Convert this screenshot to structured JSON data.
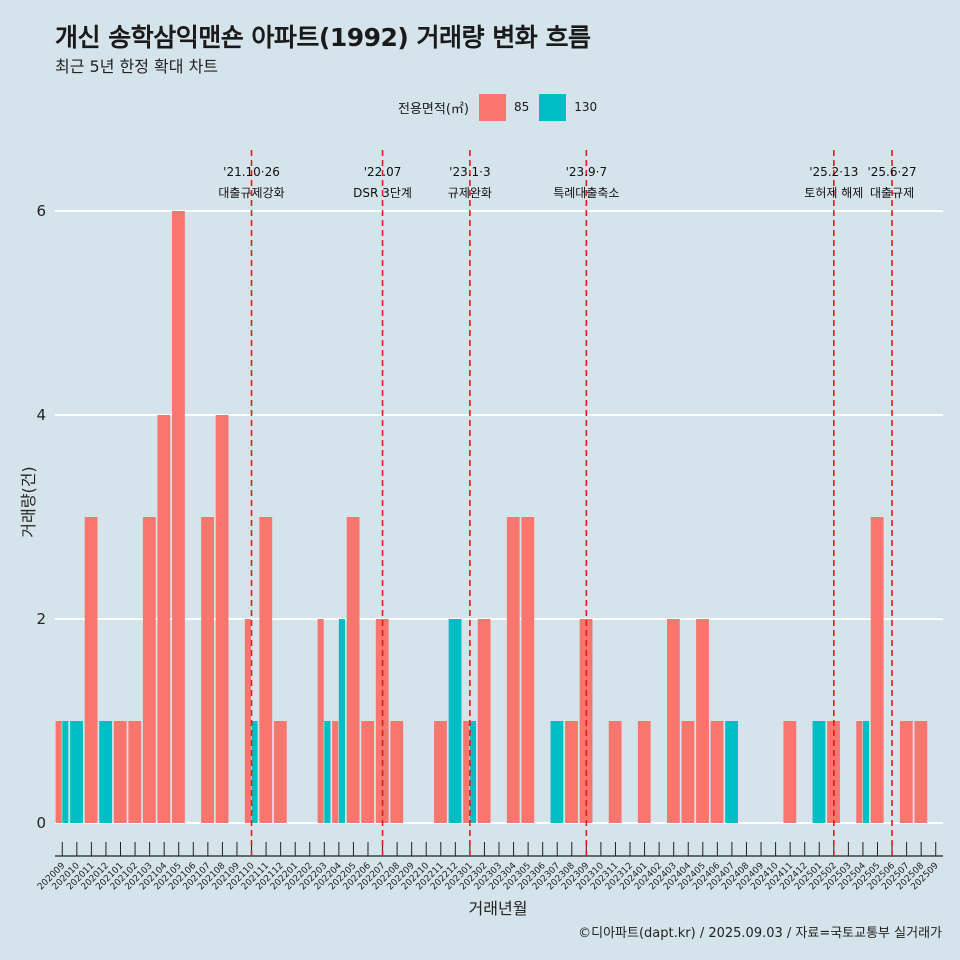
{
  "title": "개신 송학삼익맨숀 아파트(1992) 거래량 변화 흐름",
  "subtitle": "최근 5년 한정 확대 차트",
  "caption": "©디아파트(dapt.kr) / 2025.09.03 / 자료=국토교통부 실거래가",
  "legend": {
    "title": "전용면적(㎡)",
    "items": [
      {
        "label": "85",
        "color": "#f8766d"
      },
      {
        "label": "130",
        "color": "#00bfc4"
      }
    ]
  },
  "chart_data": {
    "type": "bar",
    "xlabel": "거래년월",
    "ylabel": "거래량(건)",
    "ylim": [
      0,
      6
    ],
    "yticks": [
      0,
      2,
      4,
      6
    ],
    "grid": true,
    "legend_position": "top",
    "categories": [
      "202009",
      "202010",
      "202011",
      "202012",
      "202101",
      "202102",
      "202103",
      "202104",
      "202105",
      "202106",
      "202107",
      "202108",
      "202109",
      "202110",
      "202111",
      "202112",
      "202201",
      "202202",
      "202203",
      "202204",
      "202205",
      "202206",
      "202207",
      "202208",
      "202209",
      "202210",
      "202211",
      "202212",
      "202301",
      "202302",
      "202303",
      "202304",
      "202305",
      "202306",
      "202307",
      "202308",
      "202309",
      "202310",
      "202311",
      "202312",
      "202401",
      "202402",
      "202403",
      "202404",
      "202405",
      "202406",
      "202407",
      "202408",
      "202409",
      "202410",
      "202411",
      "202412",
      "202501",
      "202502",
      "202503",
      "202504",
      "202505",
      "202506",
      "202507",
      "202508",
      "202509"
    ],
    "series": [
      {
        "name": "85",
        "color": "#f8766d",
        "values": [
          1,
          0,
          3,
          0,
          1,
          1,
          3,
          4,
          6,
          0,
          3,
          4,
          0,
          2,
          3,
          1,
          0,
          0,
          2,
          1,
          3,
          1,
          2,
          1,
          0,
          0,
          1,
          0,
          1,
          2,
          0,
          3,
          3,
          0,
          0,
          1,
          2,
          0,
          1,
          0,
          1,
          0,
          2,
          1,
          2,
          1,
          0,
          0,
          0,
          0,
          1,
          0,
          0,
          1,
          0,
          1,
          3,
          0,
          1,
          1,
          0
        ]
      },
      {
        "name": "130",
        "color": "#00bfc4",
        "values": [
          1,
          1,
          0,
          1,
          0,
          0,
          0,
          0,
          0,
          0,
          0,
          0,
          0,
          1,
          0,
          0,
          0,
          0,
          1,
          2,
          0,
          0,
          0,
          0,
          0,
          0,
          0,
          2,
          1,
          0,
          0,
          0,
          0,
          0,
          1,
          0,
          0,
          0,
          0,
          0,
          0,
          0,
          0,
          0,
          0,
          0,
          1,
          0,
          0,
          0,
          0,
          0,
          1,
          0,
          0,
          1,
          0,
          0,
          0,
          0,
          0
        ]
      }
    ],
    "events": [
      {
        "date": "'21.10·26",
        "label": "대출규제강화",
        "month": "202110"
      },
      {
        "date": "'22.07",
        "label": "DSR 3단계",
        "month": "202207"
      },
      {
        "date": "'23.1·3",
        "label": "규제완화",
        "month": "202301"
      },
      {
        "date": "'23.9·7",
        "label": "특례대출축소",
        "month": "202309"
      },
      {
        "date": "'25.2·13",
        "label": "토허제 해제",
        "month": "202502"
      },
      {
        "date": "'25.6·27",
        "label": "대출규제",
        "month": "202506"
      }
    ]
  }
}
